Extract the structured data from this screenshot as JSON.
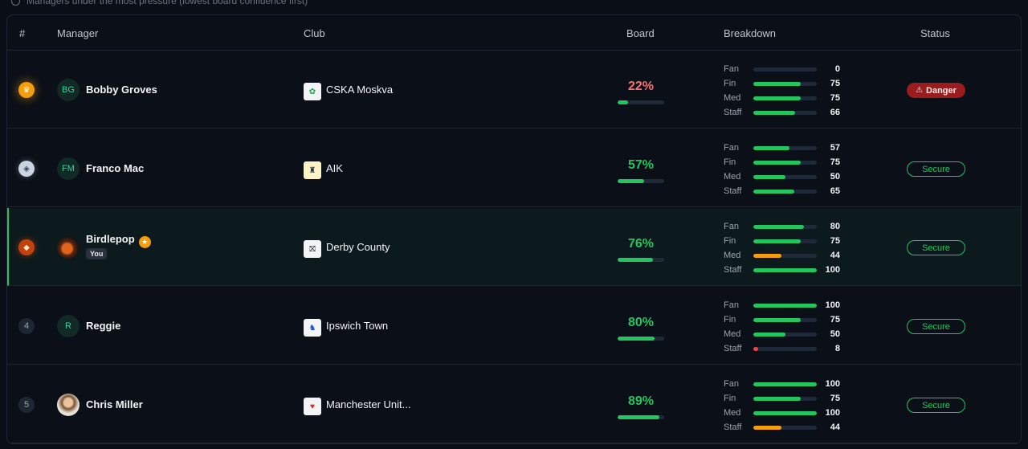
{
  "subtitle": "Managers under the most pressure (lowest board confidence first)",
  "columns": {
    "rank": "#",
    "manager": "Manager",
    "club": "Club",
    "board": "Board",
    "breakdown": "Breakdown",
    "status": "Status"
  },
  "colors": {
    "green": "#22c55e",
    "amber": "#f59e0b",
    "red": "#ef4444",
    "danger_red": "#f87171",
    "track": "#1f2937"
  },
  "rows": [
    {
      "rank": "",
      "rank_icon": "crown-icon",
      "avatar": "BG",
      "manager": "Bobby Groves",
      "club": "CSKA Moskva",
      "club_icon": "cska-crest-icon",
      "board": "22%",
      "board_value": 22,
      "breakdown": [
        {
          "label": "Fan",
          "value": "0",
          "level": 0
        },
        {
          "label": "Fin",
          "value": "75",
          "level": 75
        },
        {
          "label": "Med",
          "value": "75",
          "level": 75
        },
        {
          "label": "Staff",
          "value": "66",
          "level": 66
        }
      ],
      "status": "Danger"
    },
    {
      "rank": "",
      "rank_icon": "silver-medal-icon",
      "avatar": "FM",
      "manager": "Franco Mac",
      "club": "AIK",
      "club_icon": "aik-crest-icon",
      "board": "57%",
      "board_value": 57,
      "breakdown": [
        {
          "label": "Fan",
          "value": "57",
          "level": 57
        },
        {
          "label": "Fin",
          "value": "75",
          "level": 75
        },
        {
          "label": "Med",
          "value": "50",
          "level": 50
        },
        {
          "label": "Staff",
          "value": "65",
          "level": 65
        }
      ],
      "status": "Secure"
    },
    {
      "rank": "",
      "rank_icon": "bronze-medal-icon",
      "avatar": "",
      "manager": "Birdlepop",
      "you_badge": "You",
      "club": "Derby County",
      "club_icon": "derby-crest-icon",
      "board": "76%",
      "board_value": 76,
      "breakdown": [
        {
          "label": "Fan",
          "value": "80",
          "level": 80
        },
        {
          "label": "Fin",
          "value": "75",
          "level": 75
        },
        {
          "label": "Med",
          "value": "44",
          "level": 44
        },
        {
          "label": "Staff",
          "value": "100",
          "level": 100
        }
      ],
      "status": "Secure"
    },
    {
      "rank": "4",
      "avatar": "R",
      "manager": "Reggie",
      "club": "Ipswich Town",
      "club_icon": "ipswich-crest-icon",
      "board": "80%",
      "board_value": 80,
      "breakdown": [
        {
          "label": "Fan",
          "value": "100",
          "level": 100
        },
        {
          "label": "Fin",
          "value": "75",
          "level": 75
        },
        {
          "label": "Med",
          "value": "50",
          "level": 50
        },
        {
          "label": "Staff",
          "value": "8",
          "level": 8
        }
      ],
      "status": "Secure"
    },
    {
      "rank": "5",
      "avatar": "",
      "manager": "Chris Miller",
      "club": "Manchester Unit...",
      "club_icon": "man-utd-crest-icon",
      "board": "89%",
      "board_value": 89,
      "breakdown": [
        {
          "label": "Fan",
          "value": "100",
          "level": 100
        },
        {
          "label": "Fin",
          "value": "75",
          "level": 75
        },
        {
          "label": "Med",
          "value": "100",
          "level": 100
        },
        {
          "label": "Staff",
          "value": "44",
          "level": 44
        }
      ],
      "status": "Secure"
    }
  ]
}
